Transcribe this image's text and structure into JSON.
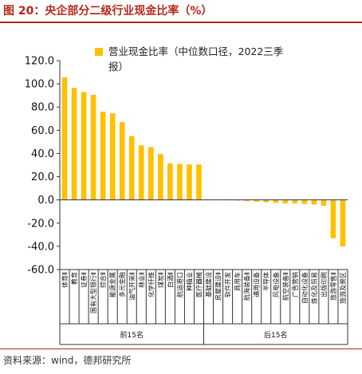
{
  "header": {
    "title": "图 20：央企部分二级行业现金比率（%）"
  },
  "footer": {
    "source": "资料来源：wind，德邦研究所"
  },
  "colors": {
    "bar": "#FFC000",
    "title": "#B5271A"
  },
  "chart_data": {
    "type": "bar",
    "legend": {
      "label_line1": "营业现金比率（中位数口径，2022三季",
      "label_line2": "报）",
      "position": "top-right"
    },
    "ylim": [
      -60,
      120
    ],
    "yticks": [
      120,
      100,
      80,
      60,
      40,
      20,
      0,
      -20,
      -40,
      -60
    ],
    "ytick_labels": [
      "120.0",
      "100.0",
      "80.0",
      "60.0",
      "40.0",
      "20.0",
      "0.0",
      "-20.0",
      "-40.0",
      "-60.0"
    ],
    "categories": [
      "体育Ⅱ",
      "教育",
      "证券Ⅱ",
      "国有大型银行Ⅱ",
      "综合Ⅱ",
      "能源金属",
      "多元金融",
      "油气开采Ⅱ",
      "林业Ⅱ",
      "化学纤维",
      "煤炭Ⅱ",
      "白酒Ⅱ",
      "航运港口",
      "种植业",
      "医疗器械",
      "基础建设",
      "房屋建设Ⅱ",
      "软件开发",
      "商用车",
      "航海装备Ⅱ",
      "通用设备",
      "半导体",
      "风电设备",
      "航空装备Ⅱ",
      "广告营销",
      "自动化设备",
      "炼化及贸易",
      "出版印刷",
      "旅游零售Ⅱ",
      "旅游及景区"
    ],
    "values": [
      105.5,
      96.5,
      93.0,
      90.5,
      76.0,
      74.5,
      67.0,
      55.0,
      47.0,
      45.5,
      39.5,
      31.5,
      31.0,
      30.5,
      30.5,
      0.5,
      0.4,
      0.3,
      -0.5,
      -1.0,
      -1.5,
      -2.0,
      -2.5,
      -3.0,
      -3.0,
      -3.5,
      -4.0,
      -5.0,
      -33.0,
      -40.0
    ],
    "groups": [
      {
        "label": "前15名",
        "start": 0,
        "end": 14
      },
      {
        "label": "后15名",
        "start": 15,
        "end": 29
      }
    ]
  }
}
